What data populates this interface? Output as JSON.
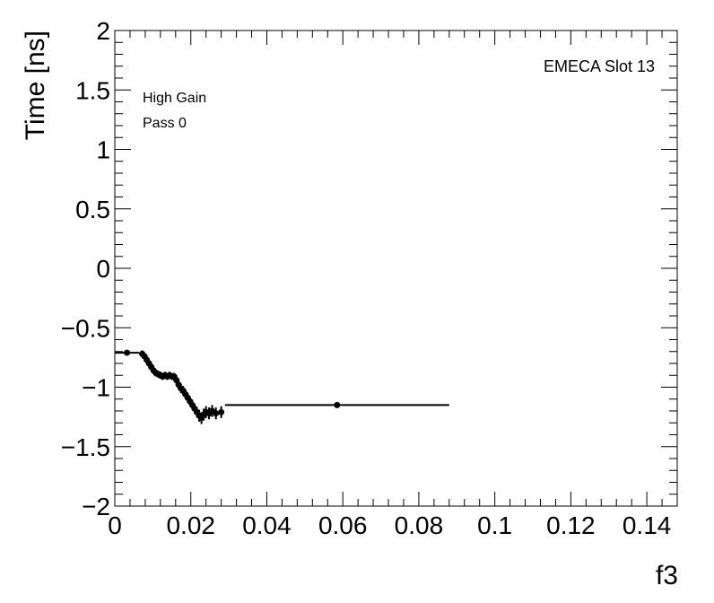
{
  "chart_data": {
    "type": "scatter",
    "xlabel": "f3",
    "ylabel": "Time [ns]",
    "xlim": [
      0,
      0.148
    ],
    "ylim": [
      -2,
      2
    ],
    "x_ticks": [
      0,
      0.02,
      0.04,
      0.06,
      0.08,
      0.1,
      0.12,
      0.14
    ],
    "x_tick_labels": [
      "0",
      "0.02",
      "0.04",
      "0.06",
      "0.08",
      "0.1",
      "0.12",
      "0.14"
    ],
    "y_ticks": [
      2,
      1.5,
      1,
      0.5,
      0,
      -0.5,
      -1,
      -1.5,
      -2
    ],
    "y_tick_labels": [
      "2",
      "1.5",
      "1",
      "0.5",
      "0",
      "−0.5",
      "−1",
      "−1.5",
      "−2"
    ],
    "annotations": {
      "slot": "EMECA Slot 13",
      "gain": "High Gain",
      "pass": "Pass 0"
    },
    "grid": false,
    "series": [
      {
        "marker": "circle",
        "points": [
          {
            "x": 0.0032,
            "y": -0.71,
            "xerr": 0.0032,
            "yerr": 0.02
          },
          {
            "x": 0.0072,
            "y": -0.72,
            "xerr": 0.0004,
            "yerr": 0.03
          },
          {
            "x": 0.0078,
            "y": -0.74,
            "xerr": 0.0003,
            "yerr": 0.03
          },
          {
            "x": 0.0084,
            "y": -0.77,
            "xerr": 0.0003,
            "yerr": 0.03
          },
          {
            "x": 0.009,
            "y": -0.8,
            "xerr": 0.0003,
            "yerr": 0.03
          },
          {
            "x": 0.0096,
            "y": -0.83,
            "xerr": 0.0003,
            "yerr": 0.03
          },
          {
            "x": 0.0102,
            "y": -0.86,
            "xerr": 0.0003,
            "yerr": 0.03
          },
          {
            "x": 0.0108,
            "y": -0.88,
            "xerr": 0.0003,
            "yerr": 0.03
          },
          {
            "x": 0.0114,
            "y": -0.89,
            "xerr": 0.0003,
            "yerr": 0.03
          },
          {
            "x": 0.012,
            "y": -0.9,
            "xerr": 0.0003,
            "yerr": 0.03
          },
          {
            "x": 0.0126,
            "y": -0.91,
            "xerr": 0.0003,
            "yerr": 0.03
          },
          {
            "x": 0.0132,
            "y": -0.9,
            "xerr": 0.0003,
            "yerr": 0.03
          },
          {
            "x": 0.0138,
            "y": -0.91,
            "xerr": 0.0003,
            "yerr": 0.03
          },
          {
            "x": 0.0144,
            "y": -0.9,
            "xerr": 0.0003,
            "yerr": 0.03
          },
          {
            "x": 0.015,
            "y": -0.91,
            "xerr": 0.0003,
            "yerr": 0.03
          },
          {
            "x": 0.0156,
            "y": -0.91,
            "xerr": 0.0003,
            "yerr": 0.03
          },
          {
            "x": 0.0162,
            "y": -0.94,
            "xerr": 0.0003,
            "yerr": 0.04
          },
          {
            "x": 0.0168,
            "y": -0.98,
            "xerr": 0.0003,
            "yerr": 0.04
          },
          {
            "x": 0.0174,
            "y": -1.01,
            "xerr": 0.0003,
            "yerr": 0.04
          },
          {
            "x": 0.018,
            "y": -1.03,
            "xerr": 0.0003,
            "yerr": 0.04
          },
          {
            "x": 0.0186,
            "y": -1.06,
            "xerr": 0.0003,
            "yerr": 0.04
          },
          {
            "x": 0.0192,
            "y": -1.09,
            "xerr": 0.0003,
            "yerr": 0.04
          },
          {
            "x": 0.0198,
            "y": -1.12,
            "xerr": 0.0003,
            "yerr": 0.04
          },
          {
            "x": 0.0204,
            "y": -1.15,
            "xerr": 0.0003,
            "yerr": 0.04
          },
          {
            "x": 0.021,
            "y": -1.18,
            "xerr": 0.0003,
            "yerr": 0.04
          },
          {
            "x": 0.0216,
            "y": -1.21,
            "xerr": 0.0003,
            "yerr": 0.04
          },
          {
            "x": 0.0222,
            "y": -1.24,
            "xerr": 0.0003,
            "yerr": 0.05
          },
          {
            "x": 0.0228,
            "y": -1.26,
            "xerr": 0.0003,
            "yerr": 0.05
          },
          {
            "x": 0.0234,
            "y": -1.23,
            "xerr": 0.0003,
            "yerr": 0.05
          },
          {
            "x": 0.024,
            "y": -1.21,
            "xerr": 0.0003,
            "yerr": 0.05
          },
          {
            "x": 0.0248,
            "y": -1.22,
            "xerr": 0.0004,
            "yerr": 0.05
          },
          {
            "x": 0.0256,
            "y": -1.2,
            "xerr": 0.0004,
            "yerr": 0.05
          },
          {
            "x": 0.0266,
            "y": -1.22,
            "xerr": 0.0005,
            "yerr": 0.05
          },
          {
            "x": 0.028,
            "y": -1.21,
            "xerr": 0.0007,
            "yerr": 0.05
          },
          {
            "x": 0.0585,
            "y": -1.15,
            "xerr": 0.0295,
            "yerr": 0.01
          }
        ]
      }
    ]
  }
}
